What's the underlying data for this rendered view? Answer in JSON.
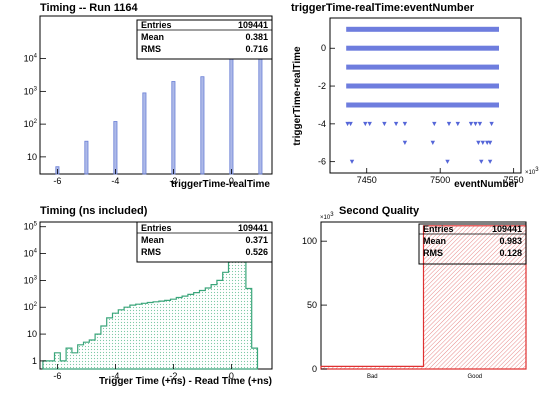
{
  "chart_data": [
    {
      "type": "bar",
      "title": "Timing -- Run 1164",
      "xlabel": "triggerTime-realTime",
      "ylabel": "",
      "x_ticks": [
        "-6",
        "-4",
        "-2",
        "0"
      ],
      "y_scale": "log",
      "y_ticks": [
        "10",
        "10^2",
        "10^3",
        "10^4"
      ],
      "xlim": [
        -6.6,
        1.4
      ],
      "ylim": [
        3,
        200000
      ],
      "x": [
        -6,
        -5,
        -4,
        -3,
        -2,
        -1,
        0,
        1
      ],
      "values": [
        5,
        30,
        120,
        900,
        2000,
        2800,
        60000,
        38000
      ],
      "bar_color": "#6a7fd6",
      "stats": {
        "entries_label": "Entries",
        "entries": "109441",
        "mean_label": "Mean",
        "mean": "0.381",
        "rms_label": "RMS",
        "rms": "0.716"
      }
    },
    {
      "type": "scatter",
      "title": "triggerTime-realTime:eventNumber",
      "xlabel": "eventNumber",
      "ylabel": "triggerTime-realTime",
      "x_ticks": [
        "7450",
        "7500",
        "7550"
      ],
      "x_exponent": "×10^3",
      "y_ticks": [
        "0",
        "-2",
        "-4",
        "-6"
      ],
      "xlim": [
        7425,
        7555
      ],
      "ylim": [
        -6.6,
        1.6
      ],
      "marker_color": "#5566d8",
      "dense_rows": [
        {
          "y": 1,
          "x_range": [
            7436,
            7540
          ]
        },
        {
          "y": 0,
          "x_range": [
            7436,
            7540
          ]
        },
        {
          "y": -1,
          "x_range": [
            7436,
            7540
          ]
        },
        {
          "y": -2,
          "x_range": [
            7436,
            7540
          ]
        },
        {
          "y": -3,
          "x_range": [
            7436,
            7540
          ]
        }
      ],
      "sparse_points": [
        {
          "x": 7437,
          "y": -4
        },
        {
          "x": 7439,
          "y": -4
        },
        {
          "x": 7449,
          "y": -4
        },
        {
          "x": 7452,
          "y": -4
        },
        {
          "x": 7462,
          "y": -4
        },
        {
          "x": 7470,
          "y": -4
        },
        {
          "x": 7476,
          "y": -4
        },
        {
          "x": 7496,
          "y": -4
        },
        {
          "x": 7506,
          "y": -4
        },
        {
          "x": 7512,
          "y": -4
        },
        {
          "x": 7521,
          "y": -4
        },
        {
          "x": 7524,
          "y": -4
        },
        {
          "x": 7527,
          "y": -4
        },
        {
          "x": 7535,
          "y": -4
        },
        {
          "x": 7476,
          "y": -5
        },
        {
          "x": 7495,
          "y": -5
        },
        {
          "x": 7526,
          "y": -5
        },
        {
          "x": 7529,
          "y": -5
        },
        {
          "x": 7532,
          "y": -5
        },
        {
          "x": 7534,
          "y": -5
        },
        {
          "x": 7440,
          "y": -6
        },
        {
          "x": 7505,
          "y": -6
        },
        {
          "x": 7528,
          "y": -6
        },
        {
          "x": 7534,
          "y": -6
        }
      ]
    },
    {
      "type": "area",
      "title": "Timing (ns included)",
      "xlabel": "Trigger Time (+ns) - Read Time (+ns)",
      "ylabel": "",
      "x_ticks": [
        "-6",
        "-4",
        "-2",
        "0"
      ],
      "y_scale": "log",
      "y_ticks": [
        "1",
        "10",
        "10^2",
        "10^3",
        "10^4",
        "10^5"
      ],
      "xlim": [
        -6.6,
        1.4
      ],
      "ylim": [
        0.5,
        150000
      ],
      "line_color": "#3aa57a",
      "x": [
        -6.4,
        -6.2,
        -6.0,
        -5.8,
        -5.6,
        -5.4,
        -5.2,
        -5.0,
        -4.8,
        -4.6,
        -4.4,
        -4.2,
        -4.0,
        -3.8,
        -3.6,
        -3.4,
        -3.2,
        -3.0,
        -2.8,
        -2.6,
        -2.4,
        -2.2,
        -2.0,
        -1.8,
        -1.6,
        -1.4,
        -1.2,
        -1.0,
        -0.8,
        -0.6,
        -0.4,
        -0.2,
        0.0,
        0.2,
        0.4,
        0.6,
        0.8
      ],
      "values": [
        1,
        1,
        2,
        1,
        3,
        2,
        4,
        5,
        6,
        10,
        20,
        40,
        60,
        80,
        100,
        120,
        130,
        140,
        150,
        160,
        170,
        180,
        200,
        230,
        260,
        300,
        350,
        420,
        520,
        700,
        1000,
        2000,
        5000,
        20000,
        100000,
        500,
        3
      ],
      "stats": {
        "entries_label": "Entries",
        "entries": "109441",
        "mean_label": "Mean",
        "mean": "0.371",
        "rms_label": "RMS",
        "rms": "0.526"
      }
    },
    {
      "type": "area",
      "title": "Second Quality",
      "xlabel": "",
      "ylabel": "",
      "categories": [
        "Bad",
        "Good"
      ],
      "values": [
        2,
        112
      ],
      "y_tick_values": [
        0,
        50,
        100
      ],
      "y_ticks": [
        "0",
        "50",
        "100"
      ],
      "y_exponent": "×10^3",
      "ylim": [
        0,
        115
      ],
      "line_color": "#e03030",
      "stats": {
        "entries_label": "Entries",
        "entries": "109441",
        "mean_label": "Mean",
        "mean": "0.983",
        "rms_label": "RMS",
        "rms": "0.128"
      }
    }
  ]
}
